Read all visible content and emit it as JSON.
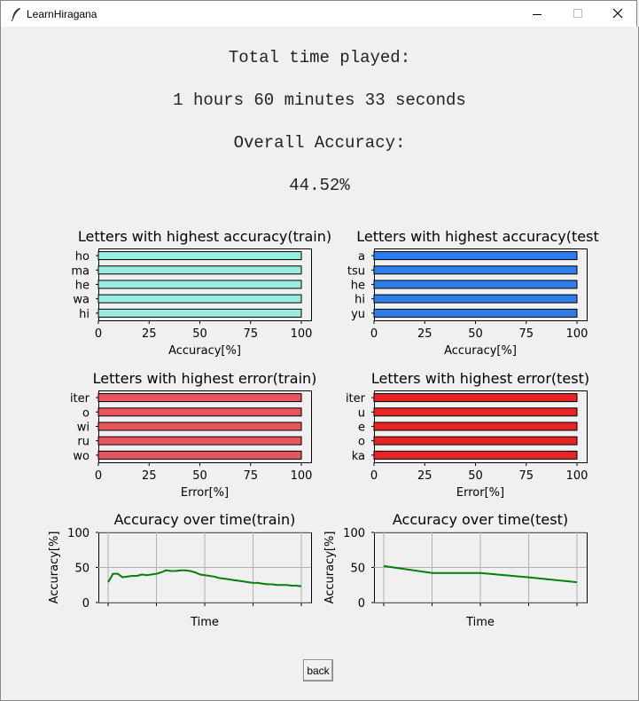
{
  "window": {
    "title": "LearnHiragana",
    "minimize_icon": "minimize-icon",
    "maximize_icon": "maximize-icon",
    "close_icon": "close-icon"
  },
  "stats": {
    "total_time_label": "Total time played:",
    "total_time_value": "1 hours 60 minutes 33 seconds",
    "overall_accuracy_label": "Overall Accuracy:",
    "overall_accuracy_value": "44.52%"
  },
  "back_label": "back",
  "colors": {
    "train_accuracy": "#99ede0",
    "test_accuracy": "#2f7dec",
    "train_error": "#e8555f",
    "test_error": "#e82324",
    "line": "#008000"
  },
  "chart_data": [
    {
      "type": "bar",
      "orientation": "horizontal",
      "title": "Letters with highest accuracy(train)",
      "categories": [
        "ho",
        "ma",
        "he",
        "wa",
        "hi"
      ],
      "values": [
        100,
        100,
        100,
        100,
        100
      ],
      "xlabel": "Accuracy[%]",
      "xlim": [
        0,
        100
      ],
      "xticks": [
        "0",
        "25",
        "50",
        "75",
        "100"
      ],
      "color": "#99ede0"
    },
    {
      "type": "bar",
      "orientation": "horizontal",
      "title": "Letters with highest accuracy(test",
      "categories": [
        "a",
        "tsu",
        "he",
        "hi",
        "yu"
      ],
      "values": [
        100,
        100,
        100,
        100,
        100
      ],
      "xlabel": "Accuracy[%]",
      "xlim": [
        0,
        100
      ],
      "xticks": [
        "0",
        "25",
        "50",
        "75",
        "100"
      ],
      "color": "#2f7dec"
    },
    {
      "type": "bar",
      "orientation": "horizontal",
      "title": "Letters with highest error(train)",
      "categories": [
        "iter",
        "o",
        "wi",
        "ru",
        "wo"
      ],
      "values": [
        100,
        100,
        100,
        100,
        100
      ],
      "xlabel": "Error[%]",
      "xlim": [
        0,
        100
      ],
      "xticks": [
        "0",
        "25",
        "50",
        "75",
        "100"
      ],
      "color": "#e8555f"
    },
    {
      "type": "bar",
      "orientation": "horizontal",
      "title": "Letters with highest error(test)",
      "categories": [
        "iter",
        "u",
        "e",
        "o",
        "ka"
      ],
      "values": [
        100,
        100,
        100,
        100,
        100
      ],
      "xlabel": "Error[%]",
      "xlim": [
        0,
        100
      ],
      "xticks": [
        "0",
        "25",
        "50",
        "75",
        "100"
      ],
      "color": "#e82324"
    },
    {
      "type": "line",
      "title": "Accuracy over time(train)",
      "xlabel": "Time",
      "ylabel": "Accuracy[%]",
      "ylim": [
        0,
        100
      ],
      "yticks": [
        "0",
        "50",
        "100"
      ],
      "grid": true,
      "x": [
        0,
        1,
        2,
        3,
        4,
        5,
        6,
        7,
        8,
        9,
        10,
        11,
        12,
        13,
        14,
        15,
        16,
        17,
        18,
        19,
        20,
        21,
        22,
        23,
        24,
        25,
        26,
        27,
        28,
        29,
        30,
        31,
        32,
        33,
        34,
        35,
        36,
        37,
        38,
        39,
        40
      ],
      "values": [
        29,
        41,
        41,
        36,
        37,
        38,
        38,
        40,
        39,
        40,
        41,
        43,
        46,
        45,
        45,
        46,
        46,
        45,
        43,
        40,
        39,
        38,
        37,
        35,
        34,
        33,
        32,
        31,
        30,
        29,
        28,
        28,
        27,
        26,
        26,
        25,
        25,
        25,
        24,
        24,
        23
      ],
      "color": "#008000"
    },
    {
      "type": "line",
      "title": "Accuracy over time(test)",
      "xlabel": "Time",
      "ylabel": "Accuracy[%]",
      "ylim": [
        0,
        100
      ],
      "yticks": [
        "0",
        "50",
        "100"
      ],
      "grid": true,
      "x": [
        0,
        1,
        2,
        3,
        4
      ],
      "values": [
        52,
        42,
        42,
        36,
        29
      ],
      "color": "#008000"
    }
  ]
}
